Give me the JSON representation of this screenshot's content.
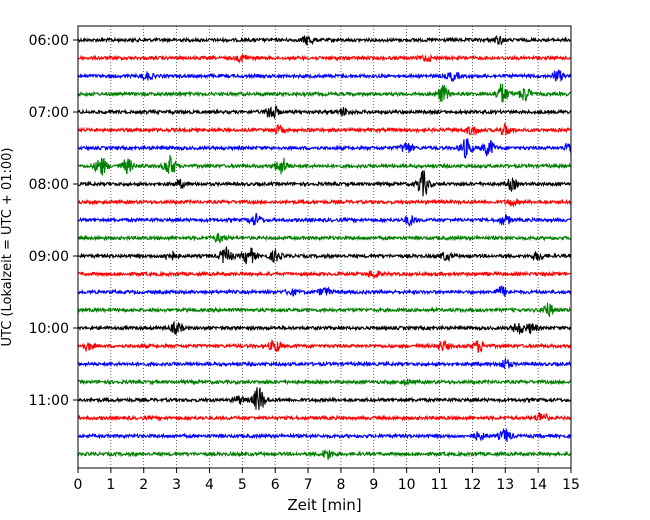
{
  "chart_data": {
    "type": "line",
    "title": "",
    "xlabel": "Zeit  [min]",
    "ylabel": "UTC (Lokalzeit = UTC + 01:00)",
    "xlim": [
      0,
      15
    ],
    "x_ticks": [
      "0",
      "1",
      "2",
      "3",
      "4",
      "5",
      "6",
      "7",
      "8",
      "9",
      "10",
      "11",
      "12",
      "13",
      "14",
      "15"
    ],
    "y_tick_labels": [
      "06:00",
      "07:00",
      "08:00",
      "09:00",
      "10:00",
      "11:00"
    ],
    "grid": "vertical-dotted",
    "trace_colors": [
      "#000000",
      "#ff0000",
      "#0000ff",
      "#008000"
    ],
    "traces": [
      {
        "start": "06:00",
        "color": "#000000",
        "events": [
          [
            7.0,
            1
          ],
          [
            12.8,
            0.8
          ]
        ]
      },
      {
        "start": "06:15",
        "color": "#ff0000",
        "events": [
          [
            5.0,
            0.7
          ],
          [
            10.6,
            0.6
          ]
        ]
      },
      {
        "start": "06:30",
        "color": "#0000ff",
        "events": [
          [
            2.1,
            0.8
          ],
          [
            11.4,
            0.9
          ],
          [
            14.6,
            1.2
          ]
        ]
      },
      {
        "start": "06:45",
        "color": "#008000",
        "events": [
          [
            11.1,
            1.8
          ],
          [
            12.9,
            2.2
          ],
          [
            13.6,
            1.5
          ]
        ]
      },
      {
        "start": "07:00",
        "color": "#000000",
        "events": [
          [
            5.9,
            1.8
          ],
          [
            8.1,
            0.8
          ]
        ]
      },
      {
        "start": "07:15",
        "color": "#ff0000",
        "events": [
          [
            6.1,
            0.8
          ],
          [
            12.0,
            1.0
          ],
          [
            13.0,
            1.2
          ]
        ]
      },
      {
        "start": "07:30",
        "color": "#0000ff",
        "events": [
          [
            10.0,
            1.2
          ],
          [
            11.8,
            2.0
          ],
          [
            12.5,
            1.8
          ],
          [
            15.0,
            1.5
          ]
        ]
      },
      {
        "start": "07:45",
        "color": "#008000",
        "events": [
          [
            0.7,
            2.0
          ],
          [
            1.5,
            1.5
          ],
          [
            2.8,
            2.2
          ],
          [
            6.2,
            1.8
          ]
        ]
      },
      {
        "start": "08:00",
        "color": "#000000",
        "events": [
          [
            3.1,
            0.8
          ],
          [
            10.5,
            2.8
          ],
          [
            13.2,
            1.2
          ]
        ]
      },
      {
        "start": "08:15",
        "color": "#ff0000",
        "events": [
          [
            13.2,
            0.7
          ]
        ]
      },
      {
        "start": "08:30",
        "color": "#0000ff",
        "events": [
          [
            5.4,
            1.2
          ],
          [
            10.1,
            1.0
          ],
          [
            13.0,
            1.0
          ]
        ]
      },
      {
        "start": "08:45",
        "color": "#008000",
        "events": [
          [
            4.3,
            0.8
          ]
        ]
      },
      {
        "start": "09:00",
        "color": "#000000",
        "events": [
          [
            2.8,
            1.0
          ],
          [
            4.5,
            1.8
          ],
          [
            5.2,
            2.0
          ],
          [
            6.0,
            1.2
          ],
          [
            11.2,
            0.8
          ],
          [
            14.0,
            0.9
          ]
        ]
      },
      {
        "start": "09:15",
        "color": "#ff0000",
        "events": [
          [
            9.0,
            0.8
          ]
        ]
      },
      {
        "start": "09:30",
        "color": "#0000ff",
        "events": [
          [
            6.5,
            0.6
          ],
          [
            7.5,
            0.9
          ],
          [
            12.9,
            1.1
          ]
        ]
      },
      {
        "start": "09:45",
        "color": "#008000",
        "events": [
          [
            14.3,
            1.4
          ]
        ]
      },
      {
        "start": "10:00",
        "color": "#000000",
        "events": [
          [
            3.0,
            1.2
          ],
          [
            13.4,
            1.2
          ],
          [
            13.8,
            1.0
          ]
        ]
      },
      {
        "start": "10:15",
        "color": "#ff0000",
        "events": [
          [
            0.3,
            0.8
          ],
          [
            6.0,
            1.2
          ],
          [
            11.1,
            1.0
          ],
          [
            12.2,
            1.2
          ]
        ]
      },
      {
        "start": "10:30",
        "color": "#0000ff",
        "events": [
          [
            13.0,
            1.0
          ]
        ]
      },
      {
        "start": "10:45",
        "color": "#008000",
        "events": [
          [
            10.0,
            0.5
          ]
        ]
      },
      {
        "start": "11:00",
        "color": "#000000",
        "events": [
          [
            4.9,
            0.8
          ],
          [
            5.5,
            2.8
          ]
        ]
      },
      {
        "start": "11:15",
        "color": "#ff0000",
        "events": [
          [
            14.1,
            1.2
          ]
        ]
      },
      {
        "start": "11:30",
        "color": "#0000ff",
        "events": [
          [
            12.2,
            0.8
          ],
          [
            13.0,
            1.4
          ]
        ]
      },
      {
        "start": "11:45",
        "color": "#008000",
        "events": [
          [
            7.6,
            1.0
          ]
        ]
      }
    ]
  }
}
